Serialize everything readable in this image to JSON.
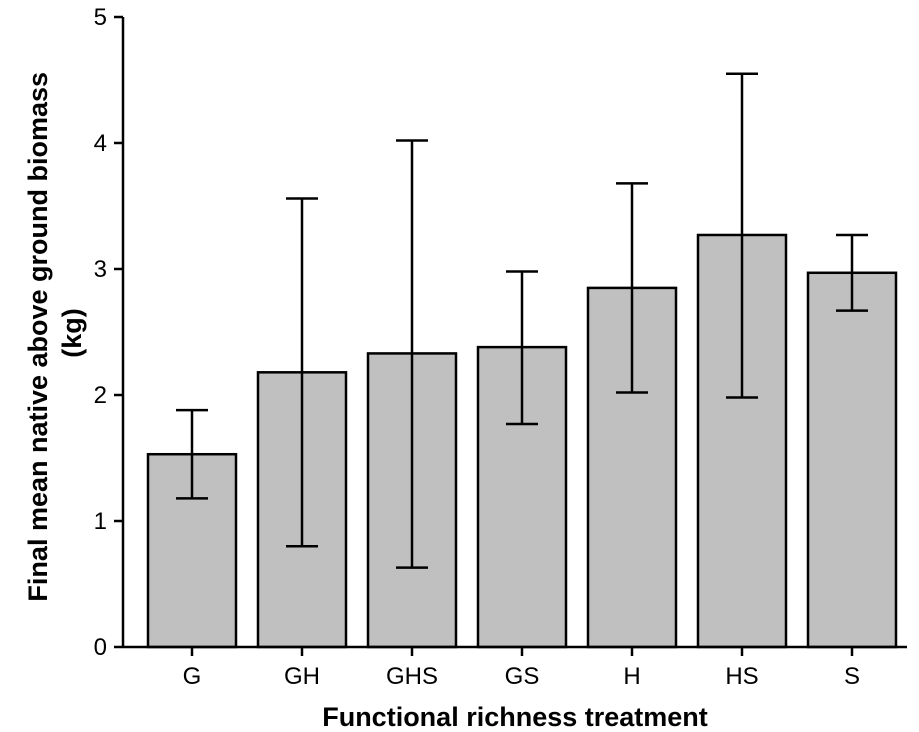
{
  "chart_data": {
    "type": "bar",
    "title": "",
    "xlabel": "Functional richness treatment",
    "ylabel": "Final mean native above ground biomass (kg)",
    "ylabel_lines": [
      "Final mean native above ground biomass",
      "(kg)"
    ],
    "categories": [
      "G",
      "GH",
      "GHS",
      "GS",
      "H",
      "HS",
      "S"
    ],
    "values": [
      1.53,
      2.18,
      2.33,
      2.38,
      2.85,
      3.27,
      2.97
    ],
    "error_upper": [
      1.88,
      3.56,
      4.02,
      2.98,
      3.68,
      4.55,
      3.27
    ],
    "error_lower": [
      1.18,
      0.8,
      0.63,
      1.77,
      2.02,
      1.98,
      2.67
    ],
    "ylim": [
      0,
      5
    ],
    "yticks": [
      "0",
      "1",
      "2",
      "3",
      "4",
      "5"
    ],
    "grid": false,
    "legend": "none",
    "colors": {
      "bar_fill": "#c0c0c0",
      "bar_stroke": "#000000",
      "axis": "#000000"
    }
  }
}
